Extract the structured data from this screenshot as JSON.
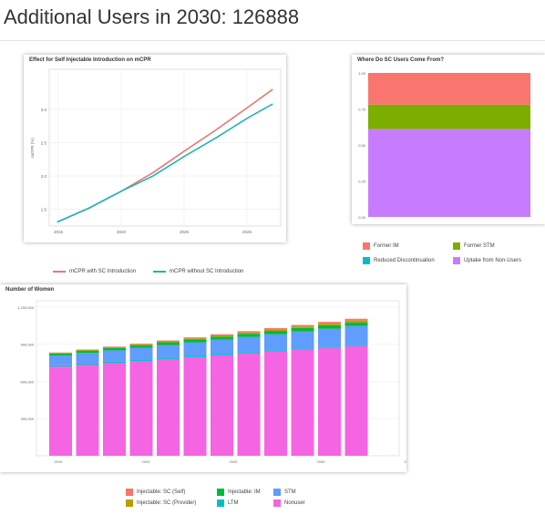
{
  "header": {
    "title": "Additional Users in 2030: 126888"
  },
  "colors": {
    "mcpr_with": "#e47a72",
    "mcpr_without": "#20b5b8",
    "former_im": "#f8766d",
    "former_stm": "#7cae00",
    "reduced_discontinuation": "#00bfc4",
    "uptake_non_users": "#c77cff",
    "inj_self": "#f8766d",
    "inj_provider": "#b79f00",
    "inj_im": "#00ba38",
    "ltm": "#00bfc4",
    "stm": "#619cff",
    "nonuser": "#f564e3"
  },
  "chart_data": [
    {
      "type": "line",
      "title": "Effect for Self Injectable Introduction on mCPR",
      "ylabel": "mCPR (%)",
      "xlabel": "",
      "x": [
        2016,
        2018,
        2020,
        2022,
        2024,
        2026,
        2028,
        2029.5
      ],
      "xticks": [
        2016,
        2020,
        2025,
        2026
      ],
      "yticks": [
        "1.5",
        "2.0",
        "2.5",
        "3.0"
      ],
      "ylim": [
        1.25,
        3.6
      ],
      "series": [
        {
          "name": "mCPR with SC Introduction",
          "values": [
            1.31,
            1.52,
            1.77,
            2.05,
            2.38,
            2.7,
            3.04,
            3.3
          ]
        },
        {
          "name": "mCPR without SC Introduction",
          "values": [
            1.31,
            1.52,
            1.77,
            2.0,
            2.3,
            2.58,
            2.88,
            3.08
          ]
        }
      ],
      "legend_position": "bottom"
    },
    {
      "type": "bar",
      "title": "Where Do SC Users Come From?",
      "stacked": true,
      "yticks": [
        "1.00",
        "0.75",
        "0.50",
        "0.25",
        "0.00"
      ],
      "ylim": [
        0,
        1
      ],
      "segments": [
        {
          "name": "Uptake from Non-Users",
          "value": 0.61
        },
        {
          "name": "Reduced Discontinuation",
          "value": 0.0
        },
        {
          "name": "Former STM",
          "value": 0.17
        },
        {
          "name": "Former IM",
          "value": 0.22
        }
      ],
      "legend": [
        "Former IM",
        "Former STM",
        "Reduced Discontinuation",
        "Uptake from Non-Users"
      ],
      "legend_position": "bottom"
    },
    {
      "type": "bar",
      "title": "Number of Women",
      "stacked": true,
      "categories": [
        "2019",
        "2020",
        "2021",
        "2022",
        "2023",
        "2024",
        "2025",
        "2026",
        "2027",
        "2028",
        "2029",
        "2030"
      ],
      "xticks": [
        "2015",
        "2020",
        "2025",
        "2030",
        "2035"
      ],
      "yticks": [
        "1,200,000",
        "900,000",
        "600,000",
        "300,000"
      ],
      "ylim": [
        0,
        1250000
      ],
      "series": [
        {
          "name": "Nonuser",
          "values": [
            720000,
            735000,
            750000,
            765000,
            780000,
            795000,
            810000,
            825000,
            840000,
            855000,
            870000,
            885000
          ]
        },
        {
          "name": "LTM",
          "values": [
            10000,
            10000,
            10000,
            10000,
            10000,
            10000,
            10000,
            10000,
            10000,
            10000,
            10000,
            10000
          ]
        },
        {
          "name": "STM",
          "values": [
            78000,
            84000,
            90000,
            96000,
            103000,
            110000,
            117000,
            124000,
            131000,
            138000,
            145000,
            152000
          ]
        },
        {
          "name": "Injectable: IM",
          "values": [
            18000,
            19000,
            20000,
            21000,
            22000,
            23000,
            24000,
            25000,
            26000,
            27000,
            28000,
            29000
          ]
        },
        {
          "name": "Injectable: SC (Provider)",
          "values": [
            4000,
            5000,
            6000,
            7000,
            8000,
            9000,
            10000,
            11000,
            12000,
            13000,
            14000,
            15000
          ]
        },
        {
          "name": "Injectable: SC (Self)",
          "values": [
            3000,
            4000,
            5000,
            6000,
            7000,
            8000,
            9000,
            10000,
            11000,
            12000,
            13000,
            14000
          ]
        }
      ],
      "legend": [
        "Injectable: SC (Self)",
        "Injectable: SC (Provider)",
        "Injectable: IM",
        "LTM",
        "STM",
        "Nonuser"
      ],
      "legend_position": "bottom"
    }
  ]
}
